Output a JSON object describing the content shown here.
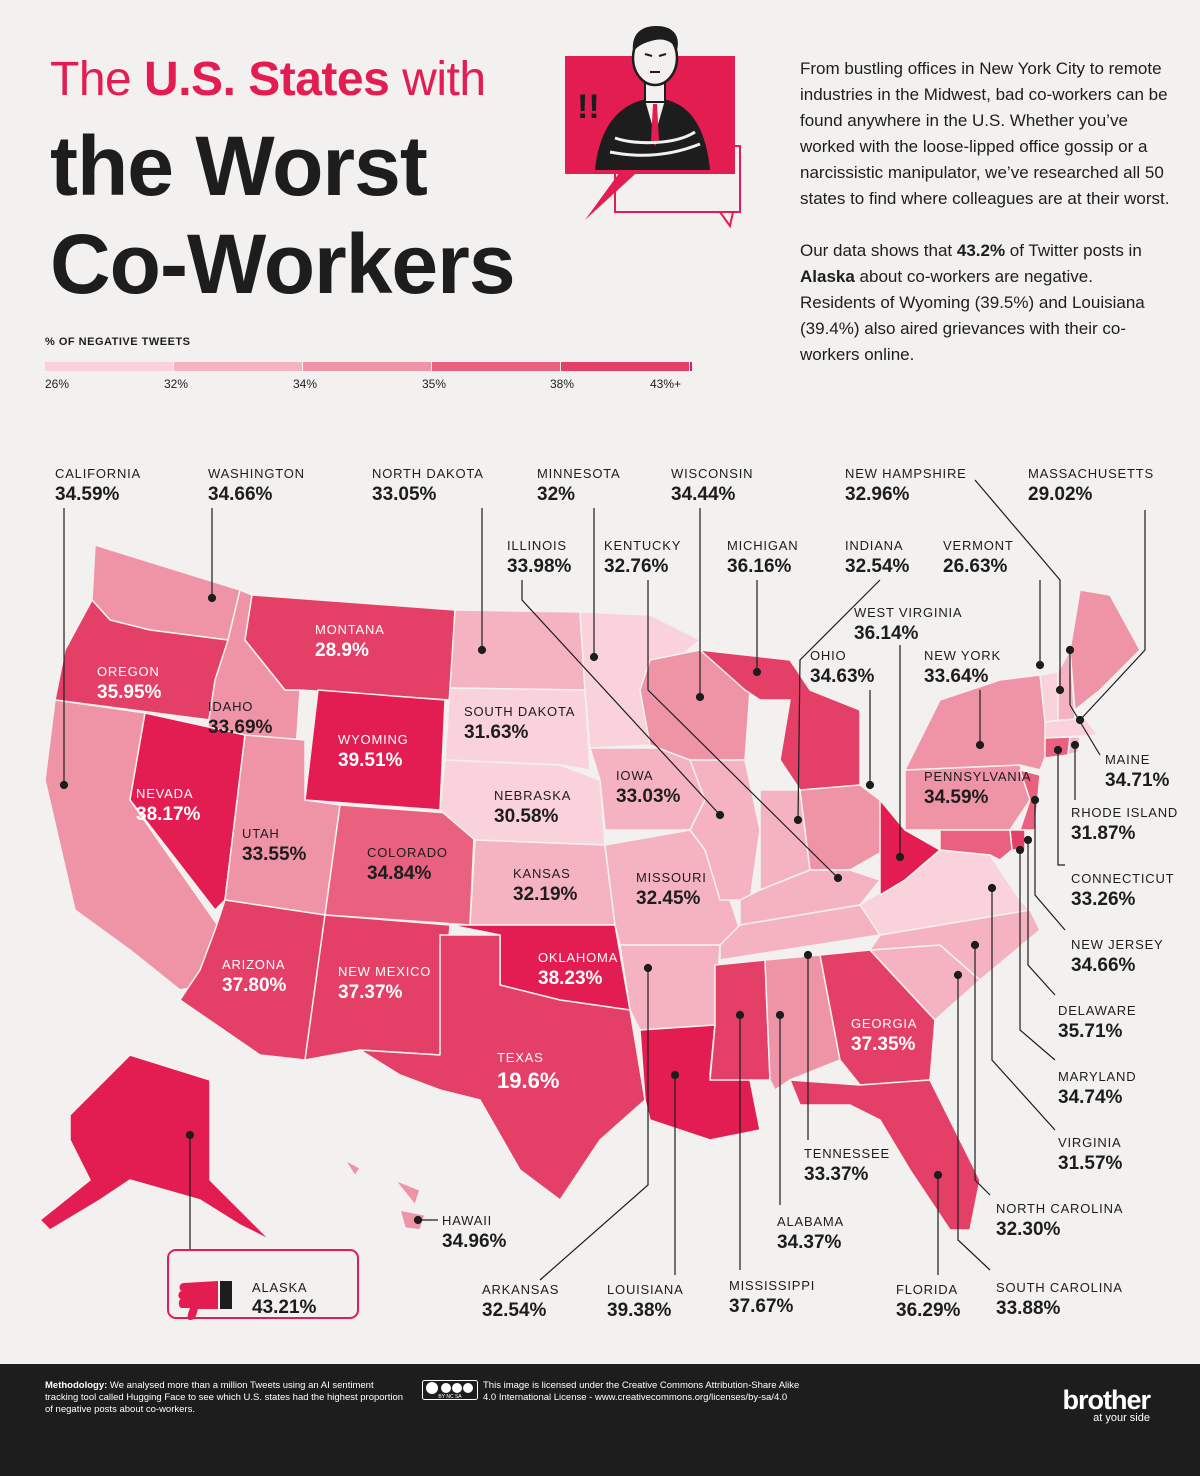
{
  "title": {
    "part1": "The ",
    "part2": "U.S. States",
    "part3": " with",
    "line2": "the Worst",
    "line3": "Co-Workers"
  },
  "intro": {
    "p1": "From bustling offices in New York City to remote industries in the Midwest, bad co-workers can be found anywhere in the U.S. Whether you’ve worked with the loose-lipped office gossip or a narcissistic manipulator, we’ve researched all 50 states to find where colleagues are at their worst.",
    "p2_a": "Our data shows that ",
    "p2_b": "43.2%",
    "p2_c": " of Twitter posts in ",
    "p2_d": "Alaska",
    "p2_e": " about co-workers are negative. Residents of Wyoming (39.5%) and Louisiana (39.4%) also aired grievances with their co-workers online."
  },
  "legend": {
    "title": "% OF NEGATIVE TWEETS",
    "labels": [
      "26%",
      "32%",
      "34%",
      "35%",
      "38%",
      "43%+"
    ],
    "colors": [
      "#f9d2db",
      "#f5b3c2",
      "#ef93a7",
      "#e9617f",
      "#e43f66",
      "#e31d51"
    ]
  },
  "states": [
    {
      "id": "california",
      "name": "CALIFORNIA",
      "value": "34.59%"
    },
    {
      "id": "washington",
      "name": "WASHINGTON",
      "value": "34.66%"
    },
    {
      "id": "north-dakota",
      "name": "NORTH DAKOTA",
      "value": "33.05%"
    },
    {
      "id": "minnesota",
      "name": "MINNESOTA",
      "value": "32%"
    },
    {
      "id": "wisconsin",
      "name": "WISCONSIN",
      "value": "34.44%"
    },
    {
      "id": "new-hampshire",
      "name": "NEW HAMPSHIRE",
      "value": "32.96%"
    },
    {
      "id": "massachusetts",
      "name": "MASSACHUSETTS",
      "value": "29.02%"
    },
    {
      "id": "illinois",
      "name": "ILLINOIS",
      "value": "33.98%"
    },
    {
      "id": "kentucky",
      "name": "KENTUCKY",
      "value": "32.76%"
    },
    {
      "id": "michigan",
      "name": "MICHIGAN",
      "value": "36.16%"
    },
    {
      "id": "indiana",
      "name": "INDIANA",
      "value": "32.54%"
    },
    {
      "id": "vermont",
      "name": "VERMONT",
      "value": "26.63%"
    },
    {
      "id": "west-virginia",
      "name": "WEST VIRGINIA",
      "value": "36.14%"
    },
    {
      "id": "montana",
      "name": "MONTANA",
      "value": "28.9%"
    },
    {
      "id": "oregon",
      "name": "OREGON",
      "value": "35.95%"
    },
    {
      "id": "ohio",
      "name": "OHIO",
      "value": "34.63%"
    },
    {
      "id": "new-york",
      "name": "NEW YORK",
      "value": "33.64%"
    },
    {
      "id": "idaho",
      "name": "IDAHO",
      "value": "33.69%"
    },
    {
      "id": "south-dakota",
      "name": "SOUTH DAKOTA",
      "value": "31.63%"
    },
    {
      "id": "wyoming",
      "name": "WYOMING",
      "value": "39.51%"
    },
    {
      "id": "maine",
      "name": "MAINE",
      "value": "34.71%"
    },
    {
      "id": "nevada",
      "name": "NEVADA",
      "value": "38.17%"
    },
    {
      "id": "iowa",
      "name": "IOWA",
      "value": "33.03%"
    },
    {
      "id": "nebraska",
      "name": "NEBRASKA",
      "value": "30.58%"
    },
    {
      "id": "pennsylvania",
      "name": "PENNSYLVANIA",
      "value": "34.59%"
    },
    {
      "id": "rhode-island",
      "name": "RHODE ISLAND",
      "value": "31.87%"
    },
    {
      "id": "utah",
      "name": "UTAH",
      "value": "33.55%"
    },
    {
      "id": "colorado",
      "name": "COLORADO",
      "value": "34.84%"
    },
    {
      "id": "kansas",
      "name": "KANSAS",
      "value": "32.19%"
    },
    {
      "id": "missouri",
      "name": "MISSOURI",
      "value": "32.45%"
    },
    {
      "id": "connecticut",
      "name": "CONNECTICUT",
      "value": "33.26%"
    },
    {
      "id": "new-jersey",
      "name": "NEW JERSEY",
      "value": "34.66%"
    },
    {
      "id": "arizona",
      "name": "ARIZONA",
      "value": "37.80%"
    },
    {
      "id": "new-mexico",
      "name": "NEW MEXICO",
      "value": "37.37%"
    },
    {
      "id": "oklahoma",
      "name": "OKLAHOMA",
      "value": "38.23%"
    },
    {
      "id": "delaware",
      "name": "DELAWARE",
      "value": "35.71%"
    },
    {
      "id": "georgia",
      "name": "GEORGIA",
      "value": "37.35%"
    },
    {
      "id": "texas",
      "name": "TEXAS",
      "value": "19.6%"
    },
    {
      "id": "maryland",
      "name": "MARYLAND",
      "value": "34.74%"
    },
    {
      "id": "tennessee",
      "name": "TENNESSEE",
      "value": "33.37%"
    },
    {
      "id": "virginia",
      "name": "VIRGINIA",
      "value": "31.57%"
    },
    {
      "id": "hawaii",
      "name": "HAWAII",
      "value": "34.96%"
    },
    {
      "id": "north-carolina",
      "name": "NORTH CAROLINA",
      "value": "32.30%"
    },
    {
      "id": "alabama",
      "name": "ALABAMA",
      "value": "34.37%"
    },
    {
      "id": "alaska",
      "name": "ALASKA",
      "value": "43.21%"
    },
    {
      "id": "arkansas",
      "name": "ARKANSAS",
      "value": "32.54%"
    },
    {
      "id": "louisiana",
      "name": "LOUISIANA",
      "value": "39.38%"
    },
    {
      "id": "mississippi",
      "name": "MISSISSIPPI",
      "value": "37.67%"
    },
    {
      "id": "florida",
      "name": "FLORIDA",
      "value": "36.29%"
    },
    {
      "id": "south-carolina",
      "name": "SOUTH CAROLINA",
      "value": "33.88%"
    }
  ],
  "footer": {
    "methodology_label": "Methodology:",
    "methodology_text": " We analysed more than a million Tweets using an AI sentiment tracking tool called Hugging Face to see which U.S. states had the highest proportion of negative posts about co-workers.",
    "license": "This image is licensed under the Creative Commons Attribution-Share Alike 4.0 International License - www.creativecommons.org/licenses/by-sa/4.0",
    "cc_badge": "BY NC SA",
    "brand": "brother",
    "brand_sub": "at your side"
  }
}
